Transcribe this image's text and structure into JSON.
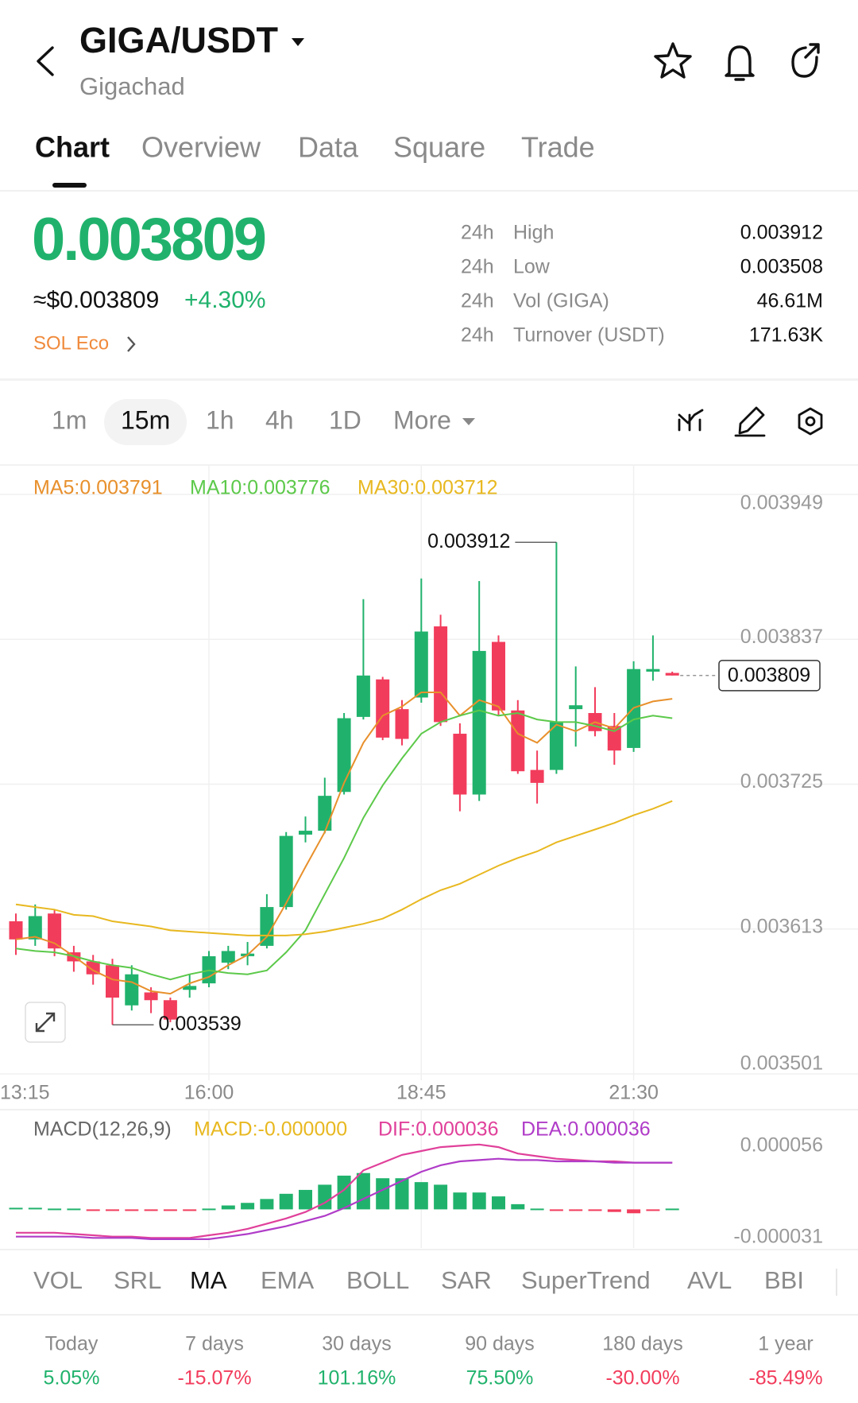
{
  "header": {
    "title": "GIGA/USDT",
    "subtitle": "Gigachad"
  },
  "tabs": {
    "items": [
      "Chart",
      "Overview",
      "Data",
      "Square",
      "Trade"
    ],
    "active": 0
  },
  "ticker": {
    "price": "0.003809",
    "usd_price": "≈$0.003809",
    "change": "+4.30%",
    "tag": "SOL Eco",
    "stats": [
      {
        "period": "24h",
        "label": "High",
        "value": "0.003912"
      },
      {
        "period": "24h",
        "label": "Low",
        "value": "0.003508"
      },
      {
        "period": "24h",
        "label": "Vol (GIGA)",
        "value": "46.61M"
      },
      {
        "period": "24h",
        "label": "Turnover (USDT)",
        "value": "171.63K"
      }
    ]
  },
  "intervals": {
    "items": [
      "1m",
      "15m",
      "1h",
      "4h",
      "1D",
      "More"
    ],
    "active": 1
  },
  "chart_data": [
    {
      "type": "candlestick",
      "up_color": "#20b26c",
      "down_color": "#f23c5c",
      "open": [
        0.003619,
        0.003605,
        0.003625,
        0.003595,
        0.003588,
        0.003585,
        0.003554,
        0.003564,
        0.003558,
        0.003566,
        0.003571,
        0.003587,
        0.003592,
        0.0036,
        0.00363,
        0.003686,
        0.003689,
        0.003719,
        0.003777,
        0.003806,
        0.003783,
        0.003792,
        0.003847,
        0.003764,
        0.003717,
        0.003835,
        0.003782,
        0.003736,
        0.003736,
        0.003783,
        0.00378,
        0.00377,
        0.003753,
        0.003812,
        0.003811
      ],
      "high": [
        0.003625,
        0.003632,
        0.003628,
        0.0036,
        0.003593,
        0.00359,
        0.003585,
        0.003568,
        0.00356,
        0.003578,
        0.003596,
        0.0036,
        0.003603,
        0.00364,
        0.003688,
        0.0037,
        0.00373,
        0.00378,
        0.003868,
        0.003808,
        0.00379,
        0.003884,
        0.003856,
        0.003772,
        0.003882,
        0.00384,
        0.00379,
        0.003751,
        0.003912,
        0.003816,
        0.0038,
        0.00378,
        0.00382,
        0.00384,
        0.003812
      ],
      "low": [
        0.003593,
        0.0036,
        0.003592,
        0.00358,
        0.00357,
        0.003539,
        0.00355,
        0.003548,
        0.003541,
        0.00356,
        0.003568,
        0.003582,
        0.003585,
        0.003598,
        0.003628,
        0.00368,
        0.003687,
        0.003717,
        0.003775,
        0.003759,
        0.003755,
        0.003788,
        0.00377,
        0.003704,
        0.003712,
        0.003778,
        0.003733,
        0.00371,
        0.003733,
        0.003754,
        0.003762,
        0.00374,
        0.00375,
        0.003805,
        0.003809
      ],
      "close": [
        0.003605,
        0.003623,
        0.003598,
        0.003588,
        0.003578,
        0.00356,
        0.003578,
        0.003558,
        0.003543,
        0.003569,
        0.003592,
        0.003596,
        0.003594,
        0.00363,
        0.003685,
        0.003689,
        0.003716,
        0.003776,
        0.003809,
        0.003761,
        0.00376,
        0.003843,
        0.003773,
        0.003717,
        0.003828,
        0.003782,
        0.003735,
        0.003726,
        0.003773,
        0.003786,
        0.003766,
        0.003751,
        0.003814,
        0.003814,
        0.003809
      ],
      "series": [
        {
          "name": "MA5:0.003791",
          "color": "#e8902c",
          "values": [
            0.003605,
            0.003607,
            0.003602,
            0.003592,
            0.003581,
            0.003574,
            0.003572,
            0.003565,
            0.003563,
            0.003571,
            0.003576,
            0.003585,
            0.003593,
            0.003607,
            0.003633,
            0.003661,
            0.003688,
            0.003726,
            0.003757,
            0.003778,
            0.003785,
            0.003796,
            0.003796,
            0.003778,
            0.00379,
            0.003785,
            0.003764,
            0.003757,
            0.003771,
            0.003766,
            0.003773,
            0.003768,
            0.003784,
            0.003789,
            0.003791
          ]
        },
        {
          "name": "MA10:0.003776",
          "color": "#5cc94a",
          "values": [
            0.003598,
            0.003596,
            0.003595,
            0.003592,
            0.003588,
            0.003585,
            0.003583,
            0.003578,
            0.003574,
            0.003578,
            0.003581,
            0.003579,
            0.003578,
            0.003581,
            0.003595,
            0.003612,
            0.00364,
            0.003668,
            0.003699,
            0.003724,
            0.003745,
            0.003764,
            0.003773,
            0.003778,
            0.003782,
            0.003778,
            0.00378,
            0.003775,
            0.003773,
            0.003773,
            0.00377,
            0.003766,
            0.003775,
            0.003778,
            0.003776
          ]
        },
        {
          "name": "MA30:0.003712",
          "color": "#e8b820",
          "values": [
            0.003632,
            0.00363,
            0.003628,
            0.003624,
            0.003623,
            0.003619,
            0.003617,
            0.003615,
            0.003612,
            0.003611,
            0.00361,
            0.003609,
            0.003608,
            0.003608,
            0.003608,
            0.003609,
            0.003611,
            0.003614,
            0.003617,
            0.003621,
            0.003628,
            0.003636,
            0.003643,
            0.003648,
            0.003655,
            0.003662,
            0.003668,
            0.003673,
            0.00368,
            0.003685,
            0.00369,
            0.003695,
            0.003701,
            0.003706,
            0.003712
          ]
        }
      ],
      "ylim": [
        0.003501,
        0.003949
      ],
      "yticks": [
        0.003949,
        0.003837,
        0.003725,
        0.003613,
        0.003501
      ],
      "xticks": [
        {
          "value": -1,
          "label": "13:15"
        },
        {
          "value": 10,
          "label": "16:00"
        },
        {
          "value": 21,
          "label": "18:45"
        },
        {
          "value": 32,
          "label": "21:30"
        }
      ],
      "grid": true
    },
    {
      "type": "macd",
      "title": "MACD(12,26,9)",
      "bars": {
        "name": "MACD:-0.000000",
        "color": "#e8b820",
        "up_color": "#20b26c",
        "down_color": "#f23c5c",
        "values": [
          1e-06,
          1e-06,
          0,
          0,
          -1e-06,
          -1e-06,
          -1e-06,
          -1e-06,
          -1e-06,
          -1e-06,
          0,
          3e-06,
          5e-06,
          8e-06,
          1.2e-05,
          1.5e-05,
          1.9e-05,
          2.6e-05,
          2.8e-05,
          2.4e-05,
          2.4e-05,
          2.1e-05,
          1.9e-05,
          1.3e-05,
          1.3e-05,
          1e-05,
          4e-06,
          0,
          -1e-06,
          -1e-06,
          -1e-06,
          -2e-06,
          -3e-06,
          -1e-06,
          0
        ]
      },
      "series": [
        {
          "name": "DIF:0.000036",
          "color": "#e0409a",
          "values": [
            -1.8e-05,
            -1.8e-05,
            -1.8e-05,
            -1.9e-05,
            -2e-05,
            -2.1e-05,
            -2.1e-05,
            -2.2e-05,
            -2.2e-05,
            -2.2e-05,
            -2e-05,
            -1.8e-05,
            -1.5e-05,
            -1.1e-05,
            -7e-06,
            -2e-06,
            5e-06,
            1.5e-05,
            3e-05,
            3.6e-05,
            4.2e-05,
            4.5e-05,
            4.8e-05,
            4.9e-05,
            5e-05,
            4.8e-05,
            4.3e-05,
            4.1e-05,
            3.9e-05,
            3.8e-05,
            3.7e-05,
            3.7e-05,
            3.6e-05,
            3.6e-05,
            3.6e-05
          ]
        },
        {
          "name": "DEA:0.000036",
          "color": "#b03cc8",
          "values": [
            -2.1e-05,
            -2.1e-05,
            -2.1e-05,
            -2.1e-05,
            -2.2e-05,
            -2.2e-05,
            -2.2e-05,
            -2.3e-05,
            -2.3e-05,
            -2.3e-05,
            -2.3e-05,
            -2.1e-05,
            -1.9e-05,
            -1.6e-05,
            -1.3e-05,
            -9e-06,
            -5e-06,
            1e-06,
            8e-06,
            1.5e-05,
            2.2e-05,
            2.9e-05,
            3.4e-05,
            3.7e-05,
            3.8e-05,
            3.9e-05,
            3.8e-05,
            3.8e-05,
            3.7e-05,
            3.7e-05,
            3.7e-05,
            3.6e-05,
            3.6e-05,
            3.6e-05,
            3.6e-05
          ]
        }
      ],
      "ylim": [
        -3.1e-05,
        5.6e-05
      ],
      "yticks": [
        5.6e-05,
        -3.1e-05
      ]
    }
  ],
  "indicators": {
    "items": [
      "VOL",
      "SRL",
      "MA",
      "EMA",
      "BOLL",
      "SAR",
      "SuperTrend",
      "AVL",
      "BBI"
    ],
    "active": 2
  },
  "performance": [
    {
      "label": "Today",
      "value": "5.05%"
    },
    {
      "label": "7 days",
      "value": "-15.07%"
    },
    {
      "label": "30 days",
      "value": "101.16%"
    },
    {
      "label": "90 days",
      "value": "75.50%"
    },
    {
      "label": "180 days",
      "value": "-30.00%"
    },
    {
      "label": "1 year",
      "value": "-85.49%"
    }
  ]
}
